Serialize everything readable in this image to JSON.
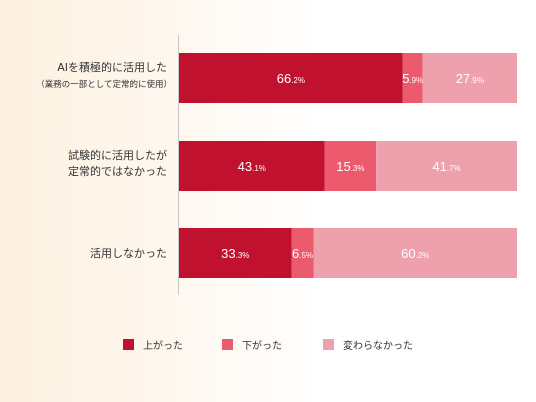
{
  "chart_data": {
    "type": "bar",
    "orientation": "horizontal",
    "stacked": true,
    "value_unit": "%",
    "categories": [
      [
        "AIを積極的に活用した",
        "（業務の一部として定常的に使用）"
      ],
      [
        "試験的に活用したが",
        "定常的ではなかった"
      ],
      [
        "活用しなかった"
      ]
    ],
    "series": [
      {
        "name": "上がった",
        "color": "#c0112f",
        "values": [
          66.2,
          43.1,
          33.3
        ]
      },
      {
        "name": "下がった",
        "color": "#ec5a6d",
        "values": [
          5.9,
          15.3,
          6.5
        ]
      },
      {
        "name": "変わらなかった",
        "color": "#efa0ad",
        "values": [
          27.9,
          41.7,
          60.2
        ]
      }
    ],
    "xlim": [
      0,
      100
    ],
    "legend_position": "bottom",
    "grid": false
  }
}
